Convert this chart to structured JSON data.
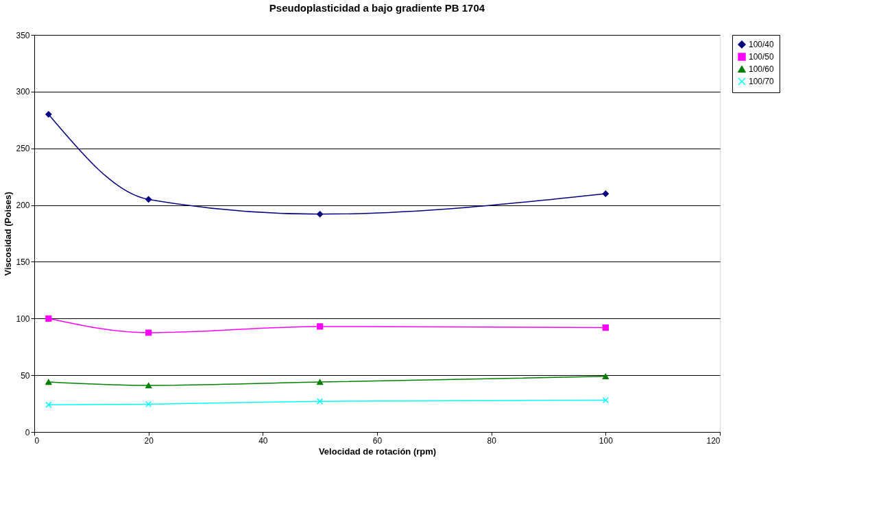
{
  "chart_data": {
    "type": "line",
    "title": "Pseudoplasticidad a bajo gradiente PB 1704",
    "xlabel": "Velocidad de rotación (rpm)",
    "ylabel": "Viscosidad (Poises)",
    "x": [
      2.5,
      20,
      50,
      100
    ],
    "series": [
      {
        "name": "100/40",
        "color": "#000080",
        "marker": "diamond",
        "values": [
          280,
          205,
          192,
          210
        ]
      },
      {
        "name": "100/50",
        "color": "#ff00ff",
        "marker": "square",
        "values": [
          100,
          87.5,
          93,
          92
        ]
      },
      {
        "name": "100/60",
        "color": "#008000",
        "marker": "triangle",
        "values": [
          44,
          41,
          44,
          49
        ]
      },
      {
        "name": "100/70",
        "color": "#00ffff",
        "marker": "cross",
        "values": [
          24,
          24.5,
          27,
          28
        ]
      }
    ],
    "xlim": [
      0,
      120
    ],
    "xticks": [
      0,
      20,
      40,
      60,
      80,
      100,
      120
    ],
    "ylim": [
      0,
      350
    ],
    "yticks": [
      0,
      50,
      100,
      150,
      200,
      250,
      300,
      350
    ],
    "grid": "y",
    "legend": "right",
    "line_style": "solid"
  }
}
